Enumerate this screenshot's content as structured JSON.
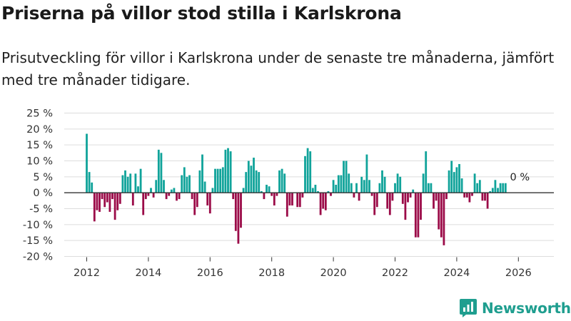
{
  "title": "Priserna på villor stod stilla i Karlskrona",
  "subtitle": "Prisutveckling för villor i Karlskrona under de senaste tre månaderna, jämfört med tre månader tidigare.",
  "brand": "Newsworthy",
  "colors": {
    "positive": "#10a39a",
    "negative": "#9b0b48",
    "grid": "#dddddd",
    "zero_line": "#333333",
    "brand": "#1f9e8f"
  },
  "chart_data": {
    "type": "bar",
    "title": "Priserna på villor stod stilla i Karlskrona",
    "xlabel": "",
    "ylabel": "",
    "ylim": [
      -20,
      25
    ],
    "yticks": [
      25,
      20,
      15,
      10,
      5,
      0,
      -5,
      -10,
      -15,
      -20
    ],
    "ytick_labels": [
      "25 %",
      "20 %",
      "15 %",
      "10 %",
      "5 %",
      "0 %",
      "-5 %",
      "-10 %",
      "-15 %",
      "-20 %"
    ],
    "xticks": [
      2012,
      2014,
      2016,
      2018,
      2020,
      2022,
      2024,
      2026
    ],
    "x_start": "2012-01",
    "x_interval": "month",
    "grid": true,
    "annotation": {
      "label": "0 %",
      "month_index": 165
    },
    "values": [
      18.5,
      6.5,
      3.2,
      -9.0,
      -5.5,
      -6.0,
      -2.0,
      -4.5,
      -3.0,
      -6.0,
      -2.0,
      -8.5,
      -5.5,
      -3.5,
      5.5,
      7.0,
      5.0,
      6.0,
      -4.0,
      6.0,
      2.0,
      7.5,
      -7.0,
      -2.0,
      -1.0,
      1.5,
      -1.5,
      4.0,
      13.5,
      12.5,
      4.0,
      -2.0,
      -1.0,
      1.0,
      1.5,
      -2.5,
      -2.0,
      5.5,
      8.0,
      5.0,
      5.5,
      -2.0,
      -7.0,
      -4.5,
      7.0,
      12.0,
      3.5,
      -4.0,
      -6.5,
      1.5,
      7.5,
      7.5,
      7.5,
      8.0,
      13.5,
      14.0,
      13.0,
      -2.0,
      -12.0,
      -16.0,
      -11.0,
      1.5,
      6.5,
      10.0,
      8.5,
      11.0,
      7.0,
      6.5,
      0.5,
      -2.0,
      2.5,
      2.0,
      -1.0,
      -4.0,
      -1.0,
      7.0,
      7.5,
      6.0,
      -7.5,
      -4.0,
      -4.0,
      0.0,
      -4.5,
      -4.5,
      -1.5,
      11.5,
      14.0,
      13.0,
      1.5,
      2.5,
      0.5,
      -7.0,
      -5.0,
      -5.5,
      0.5,
      -1.0,
      4.0,
      2.5,
      5.5,
      5.5,
      10.0,
      10.0,
      6.0,
      3.0,
      -1.5,
      3.0,
      -2.5,
      5.0,
      4.0,
      12.0,
      4.0,
      -1.0,
      -7.0,
      -4.5,
      3.0,
      7.0,
      5.0,
      -5.0,
      -7.0,
      -2.5,
      3.0,
      6.0,
      5.0,
      -3.5,
      -8.5,
      -3.0,
      -1.5,
      1.0,
      -14.0,
      -14.0,
      -8.5,
      6.0,
      13.0,
      3.0,
      3.0,
      -5.0,
      -2.5,
      -11.5,
      -14.0,
      -16.5,
      -2.0,
      7.0,
      10.0,
      6.5,
      8.0,
      9.0,
      4.5,
      -1.5,
      -1.5,
      -3.0,
      -1.0,
      6.0,
      3.0,
      4.0,
      -2.5,
      -2.5,
      -5.0,
      0.5,
      1.5,
      4.0,
      1.5,
      3.0,
      3.0,
      3.0
    ]
  }
}
